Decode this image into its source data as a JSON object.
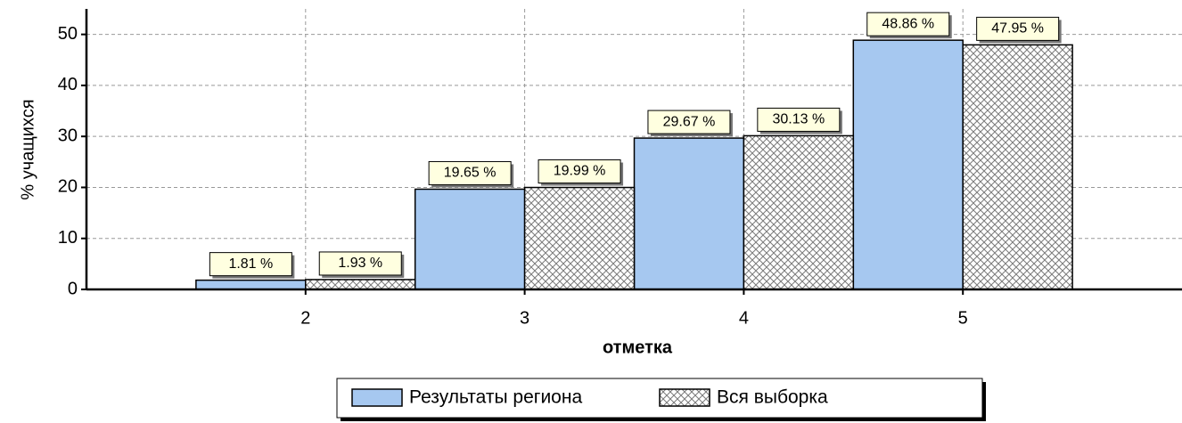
{
  "chart_data": {
    "type": "bar",
    "xlabel": "отметка",
    "ylabel": "% учащихся",
    "categories": [
      "2",
      "3",
      "4",
      "5"
    ],
    "series": [
      {
        "name": "Результаты региона",
        "color": "#a6c8f0",
        "hatch": false,
        "values": [
          1.81,
          19.65,
          29.67,
          48.86
        ],
        "value_labels": [
          "1.81 %",
          "19.65 %",
          "29.67 %",
          "48.86 %"
        ]
      },
      {
        "name": "Вся выборка",
        "color": "#7a7a7a",
        "hatch": true,
        "values": [
          1.93,
          19.99,
          30.13,
          47.95
        ],
        "value_labels": [
          "1.93 %",
          "19.99 %",
          "30.13 %",
          "47.95 %"
        ]
      }
    ],
    "ylim": [
      0,
      55
    ],
    "yticks": [
      0,
      10,
      20,
      30,
      40,
      50
    ],
    "grid": true
  }
}
